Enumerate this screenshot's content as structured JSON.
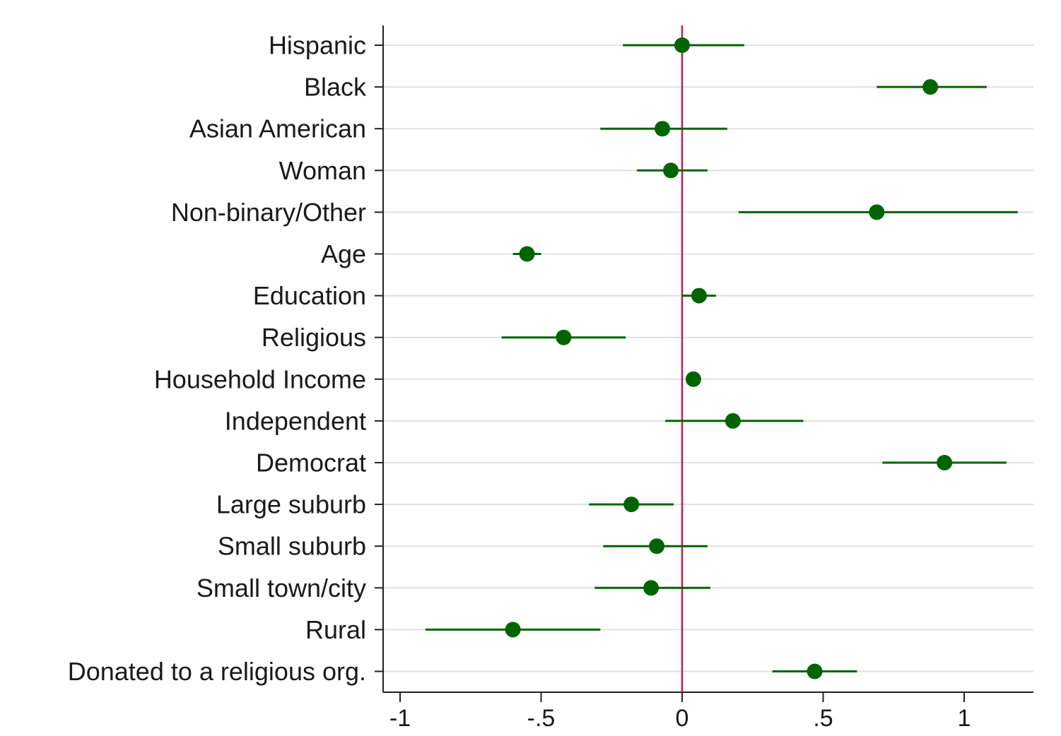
{
  "chart_data": {
    "type": "scatter",
    "orientation": "horizontal",
    "subtype": "coefficient-plot",
    "title": "",
    "xlabel": "",
    "ylabel": "",
    "xlim": [
      -1.05,
      1.25
    ],
    "xticks": [
      -1,
      -0.5,
      0,
      0.5,
      1
    ],
    "xtick_labels": [
      "-1",
      "-.5",
      "0",
      ".5",
      "1"
    ],
    "reference_line": 0,
    "grid": true,
    "categories": [
      "Hispanic",
      "Black",
      "Asian American",
      "Woman",
      "Non-binary/Other",
      "Age",
      "Education",
      "Religious",
      "Household Income",
      "Independent",
      "Democrat",
      "Large suburb",
      "Small suburb",
      "Small town/city",
      "Rural",
      "Donated to a religious org."
    ],
    "series": [
      {
        "name": "Estimate",
        "values": [
          0.0,
          0.88,
          -0.07,
          -0.04,
          0.69,
          -0.55,
          0.06,
          -0.42,
          0.04,
          0.18,
          0.93,
          -0.18,
          -0.09,
          -0.11,
          -0.6,
          0.47
        ],
        "ci_low": [
          -0.21,
          0.69,
          -0.29,
          -0.16,
          0.2,
          -0.6,
          0.0,
          -0.64,
          0.02,
          -0.06,
          0.71,
          -0.33,
          -0.28,
          -0.31,
          -0.91,
          0.32
        ],
        "ci_high": [
          0.22,
          1.08,
          0.16,
          0.09,
          1.19,
          -0.5,
          0.12,
          -0.2,
          0.06,
          0.43,
          1.15,
          -0.03,
          0.09,
          0.1,
          -0.29,
          0.62
        ]
      }
    ],
    "colors": {
      "marker": "#006400",
      "ci_line": "#006400",
      "reference_line": "#c2185b",
      "grid": "#e0e0e0",
      "axis": "#222222"
    }
  }
}
